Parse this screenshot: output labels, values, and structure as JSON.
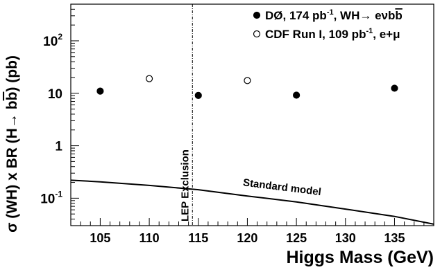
{
  "chart_data": {
    "type": "scatter",
    "xlabel": "Higgs Mass (GeV)",
    "ylabel_parts": {
      "pre": "σ (WH) x BR (H",
      "arrow": "→",
      "post_start": " b",
      "bbar": "b",
      "post_end": ") (pb)"
    },
    "xlim": [
      102,
      139
    ],
    "ylim": [
      0.03,
      500
    ],
    "yscale": "log",
    "x_ticks": [
      105,
      110,
      115,
      120,
      125,
      130,
      135
    ],
    "x_tick_labels": [
      "105",
      "110",
      "115",
      "120",
      "125",
      "130",
      "135"
    ],
    "y_major_ticks": [
      {
        "value": 0.1,
        "base": "10",
        "exp": "-1"
      },
      {
        "value": 1,
        "base": "1",
        "exp": ""
      },
      {
        "value": 10,
        "base": "10",
        "exp": ""
      },
      {
        "value": 100,
        "base": "10",
        "exp": "2"
      }
    ],
    "series": [
      {
        "marker": "filled-circle",
        "legend": {
          "prefix": "DØ, 174 pb",
          "sup": "-1",
          "suffix": ", WH",
          "arrow": "→",
          "e_nu": " eν",
          "b1": "b",
          "b2": "b"
        },
        "points": [
          {
            "x": 105,
            "y": 11.0
          },
          {
            "x": 115,
            "y": 9.1
          },
          {
            "x": 125,
            "y": 9.2
          },
          {
            "x": 135,
            "y": 12.5
          }
        ]
      },
      {
        "marker": "open-circle",
        "legend": {
          "prefix": "CDF Run I, 109 pb",
          "sup": "-1",
          "suffix": ", e+μ"
        },
        "points": [
          {
            "x": 110,
            "y": 19.0
          },
          {
            "x": 120,
            "y": 17.5
          }
        ]
      }
    ],
    "standard_model": {
      "label": "Standard model",
      "points": [
        {
          "x": 102,
          "y": 0.22
        },
        {
          "x": 105,
          "y": 0.205
        },
        {
          "x": 110,
          "y": 0.175
        },
        {
          "x": 115,
          "y": 0.145
        },
        {
          "x": 120,
          "y": 0.11
        },
        {
          "x": 125,
          "y": 0.085
        },
        {
          "x": 130,
          "y": 0.062
        },
        {
          "x": 135,
          "y": 0.045
        },
        {
          "x": 139,
          "y": 0.032
        }
      ]
    },
    "lep_exclusion": {
      "x": 114.4,
      "label": "LEP  Exclusion"
    }
  }
}
